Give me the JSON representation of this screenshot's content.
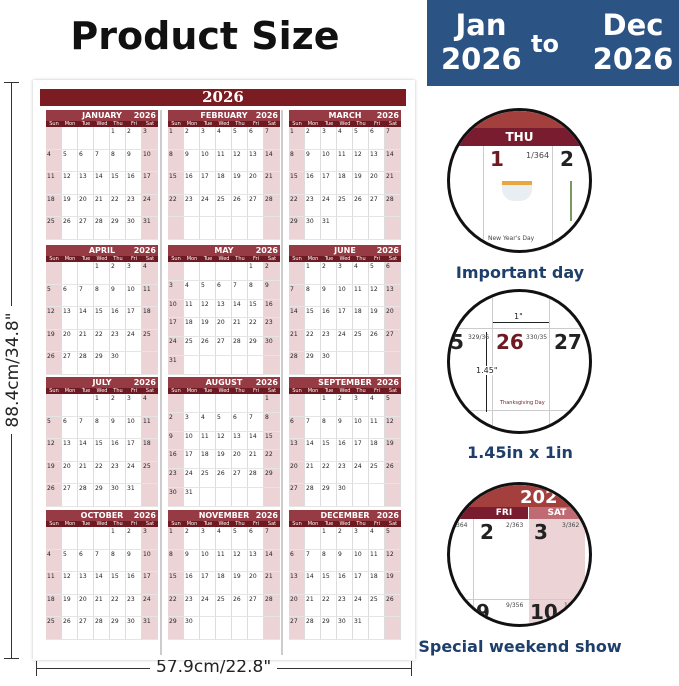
{
  "heading": "Product Size",
  "range": {
    "from_month": "Jan",
    "from_year": "2026",
    "to": "to",
    "to_month": "Dec",
    "to_year": "2026"
  },
  "poster": {
    "year": "2026",
    "weekdays": [
      "Sun",
      "Mon",
      "Tue",
      "Wed",
      "Thu",
      "Fri",
      "Sat"
    ],
    "months": [
      {
        "name": "JANUARY",
        "start": 4,
        "days": 31
      },
      {
        "name": "FEBRUARY",
        "start": 0,
        "days": 28
      },
      {
        "name": "MARCH",
        "start": 0,
        "days": 31
      },
      {
        "name": "APRIL",
        "start": 3,
        "days": 30
      },
      {
        "name": "MAY",
        "start": 5,
        "days": 31
      },
      {
        "name": "JUNE",
        "start": 1,
        "days": 30
      },
      {
        "name": "JULY",
        "start": 3,
        "days": 31
      },
      {
        "name": "AUGUST",
        "start": 6,
        "days": 31
      },
      {
        "name": "SEPTEMBER",
        "start": 2,
        "days": 30
      },
      {
        "name": "OCTOBER",
        "start": 4,
        "days": 31
      },
      {
        "name": "NOVEMBER",
        "start": 0,
        "days": 30
      },
      {
        "name": "DECEMBER",
        "start": 2,
        "days": 31
      }
    ]
  },
  "dimensions": {
    "height": "88.4cm/34.8\"",
    "width": "57.9cm/22.8\""
  },
  "features": [
    {
      "label": "Important day",
      "weekday": "THU",
      "day1": "1",
      "count1": "1/364",
      "day2": "2",
      "holiday": "New Year's Day"
    },
    {
      "label": "1.45in x 1in",
      "width": "1\"",
      "height": "1.45\"",
      "day_prev": "5",
      "count_prev": "329/36",
      "day1": "26",
      "count1": "330/35",
      "day2": "27",
      "holiday": "Thanksgiving Day"
    },
    {
      "label": "Special weekend show",
      "year_partial": "202",
      "fri": "FRI",
      "sat": "SAT",
      "count_prev": "364",
      "d2": "2",
      "c2": "2/363",
      "d3": "3",
      "c3": "3/362",
      "d9": "9",
      "c9": "9/356",
      "d10": "10",
      "c10": "10/"
    }
  ],
  "colors": {
    "brand": "#7a1c22",
    "weekend": "#ecd3d5",
    "accent": "#2b5384"
  }
}
